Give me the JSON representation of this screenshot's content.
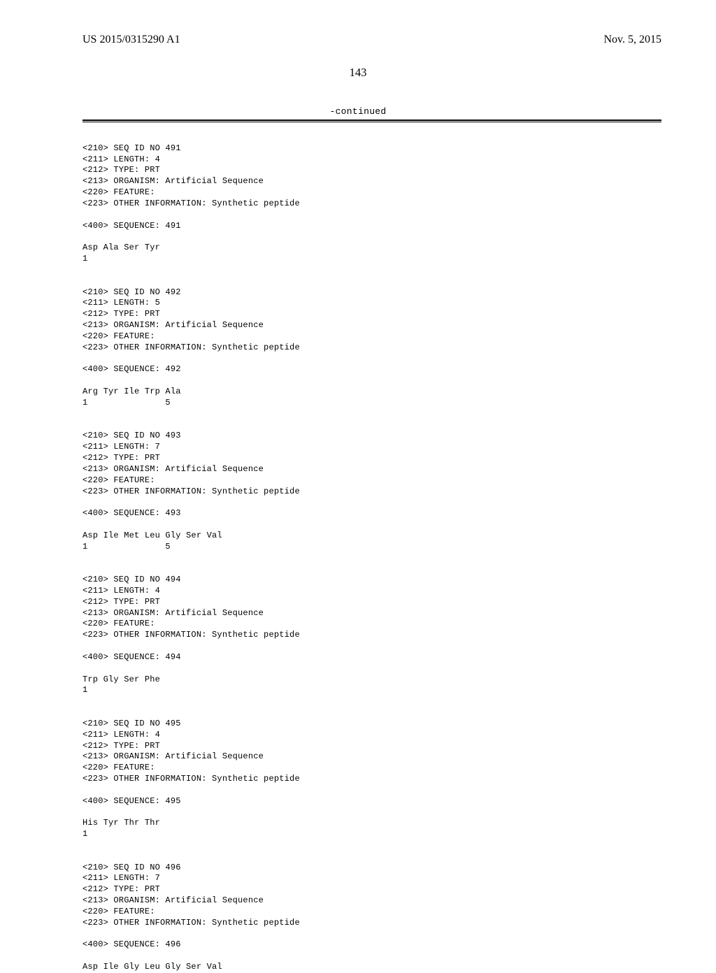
{
  "header": {
    "publication_number": "US 2015/0315290 A1",
    "publication_date": "Nov. 5, 2015"
  },
  "page_number": "143",
  "continued_label": "-continued",
  "sequences": [
    {
      "seq_id": "<210> SEQ ID NO 491",
      "length": "<211> LENGTH: 4",
      "type": "<212> TYPE: PRT",
      "organism": "<213> ORGANISM: Artificial Sequence",
      "feature": "<220> FEATURE:",
      "other": "<223> OTHER INFORMATION: Synthetic peptide",
      "seq_header": "<400> SEQUENCE: 491",
      "residues": "Asp Ala Ser Tyr",
      "numbers": "1"
    },
    {
      "seq_id": "<210> SEQ ID NO 492",
      "length": "<211> LENGTH: 5",
      "type": "<212> TYPE: PRT",
      "organism": "<213> ORGANISM: Artificial Sequence",
      "feature": "<220> FEATURE:",
      "other": "<223> OTHER INFORMATION: Synthetic peptide",
      "seq_header": "<400> SEQUENCE: 492",
      "residues": "Arg Tyr Ile Trp Ala",
      "numbers": "1               5"
    },
    {
      "seq_id": "<210> SEQ ID NO 493",
      "length": "<211> LENGTH: 7",
      "type": "<212> TYPE: PRT",
      "organism": "<213> ORGANISM: Artificial Sequence",
      "feature": "<220> FEATURE:",
      "other": "<223> OTHER INFORMATION: Synthetic peptide",
      "seq_header": "<400> SEQUENCE: 493",
      "residues": "Asp Ile Met Leu Gly Ser Val",
      "numbers": "1               5"
    },
    {
      "seq_id": "<210> SEQ ID NO 494",
      "length": "<211> LENGTH: 4",
      "type": "<212> TYPE: PRT",
      "organism": "<213> ORGANISM: Artificial Sequence",
      "feature": "<220> FEATURE:",
      "other": "<223> OTHER INFORMATION: Synthetic peptide",
      "seq_header": "<400> SEQUENCE: 494",
      "residues": "Trp Gly Ser Phe",
      "numbers": "1"
    },
    {
      "seq_id": "<210> SEQ ID NO 495",
      "length": "<211> LENGTH: 4",
      "type": "<212> TYPE: PRT",
      "organism": "<213> ORGANISM: Artificial Sequence",
      "feature": "<220> FEATURE:",
      "other": "<223> OTHER INFORMATION: Synthetic peptide",
      "seq_header": "<400> SEQUENCE: 495",
      "residues": "His Tyr Thr Thr",
      "numbers": "1"
    },
    {
      "seq_id": "<210> SEQ ID NO 496",
      "length": "<211> LENGTH: 7",
      "type": "<212> TYPE: PRT",
      "organism": "<213> ORGANISM: Artificial Sequence",
      "feature": "<220> FEATURE:",
      "other": "<223> OTHER INFORMATION: Synthetic peptide",
      "seq_header": "<400> SEQUENCE: 496",
      "residues": "Asp Ile Gly Leu Gly Ser Val",
      "numbers": ""
    }
  ]
}
